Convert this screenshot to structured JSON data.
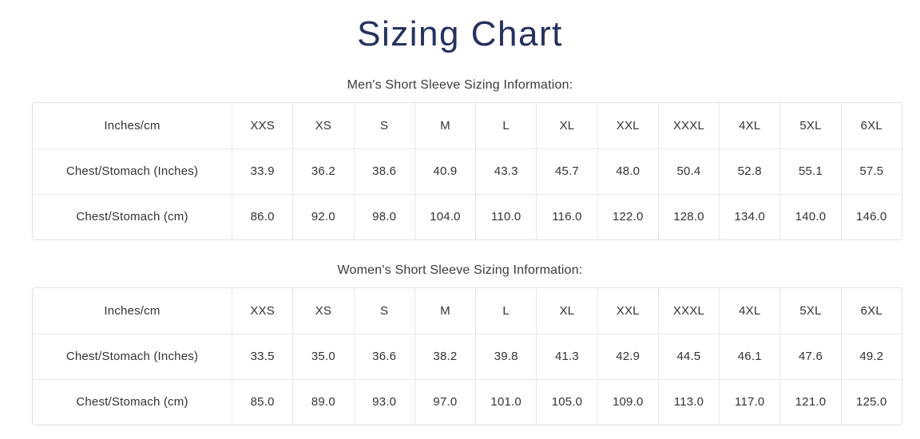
{
  "page": {
    "title": "Sizing Chart"
  },
  "colors": {
    "title_navy": "#27315f",
    "table_border": "#e1e1e1",
    "text": "#333333"
  },
  "tables": [
    {
      "id": "mens",
      "subtitle": "Men's Short Sleeve Sizing Information:",
      "columns": [
        "Inches/cm",
        "XXS",
        "XS",
        "S",
        "M",
        "L",
        "XL",
        "XXL",
        "XXXL",
        "4XL",
        "5XL",
        "6XL"
      ],
      "rows": [
        {
          "label": "Chest/Stomach (Inches)",
          "values": [
            "33.9",
            "36.2",
            "38.6",
            "40.9",
            "43.3",
            "45.7",
            "48.0",
            "50.4",
            "52.8",
            "55.1",
            "57.5"
          ]
        },
        {
          "label": "Chest/Stomach (cm)",
          "values": [
            "86.0",
            "92.0",
            "98.0",
            "104.0",
            "110.0",
            "116.0",
            "122.0",
            "128.0",
            "134.0",
            "140.0",
            "146.0"
          ]
        }
      ]
    },
    {
      "id": "womens",
      "subtitle": "Women's Short Sleeve Sizing Information:",
      "columns": [
        "Inches/cm",
        "XXS",
        "XS",
        "S",
        "M",
        "L",
        "XL",
        "XXL",
        "XXXL",
        "4XL",
        "5XL",
        "6XL"
      ],
      "rows": [
        {
          "label": "Chest/Stomach (Inches)",
          "values": [
            "33.5",
            "35.0",
            "36.6",
            "38.2",
            "39.8",
            "41.3",
            "42.9",
            "44.5",
            "46.1",
            "47.6",
            "49.2"
          ]
        },
        {
          "label": "Chest/Stomach (cm)",
          "values": [
            "85.0",
            "89.0",
            "93.0",
            "97.0",
            "101.0",
            "105.0",
            "109.0",
            "113.0",
            "117.0",
            "121.0",
            "125.0"
          ]
        }
      ]
    }
  ]
}
